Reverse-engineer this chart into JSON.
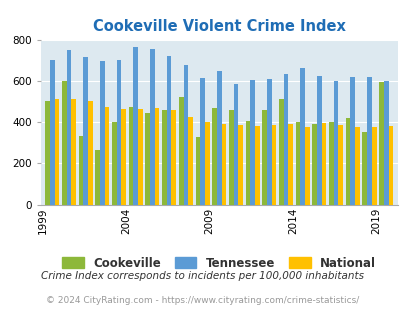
{
  "title": "Cookeville Violent Crime Index",
  "years": [
    1999,
    2000,
    2001,
    2002,
    2003,
    2004,
    2005,
    2006,
    2007,
    2008,
    2009,
    2010,
    2011,
    2012,
    2013,
    2014,
    2015,
    2016,
    2017,
    2018,
    2019
  ],
  "cookeville": [
    500,
    600,
    335,
    265,
    400,
    475,
    445,
    460,
    520,
    330,
    470,
    460,
    405,
    460,
    510,
    400,
    390,
    400,
    420,
    350,
    595
  ],
  "tennessee": [
    700,
    750,
    715,
    695,
    700,
    765,
    755,
    720,
    675,
    615,
    650,
    585,
    605,
    610,
    635,
    660,
    625,
    600,
    620,
    620,
    600
  ],
  "national": [
    510,
    510,
    500,
    475,
    465,
    465,
    470,
    460,
    425,
    400,
    390,
    385,
    380,
    385,
    390,
    375,
    395,
    385,
    375,
    375,
    380
  ],
  "colors": {
    "cookeville": "#8DB83A",
    "tennessee": "#5B9BD5",
    "national": "#FFC000"
  },
  "background_color": "#DDE9F0",
  "ylim": [
    0,
    800
  ],
  "yticks": [
    0,
    200,
    400,
    600,
    800
  ],
  "xtick_years": [
    1999,
    2004,
    2009,
    2014,
    2019
  ],
  "footnote1": "Crime Index corresponds to incidents per 100,000 inhabitants",
  "footnote2": "© 2024 CityRating.com - https://www.cityrating.com/crime-statistics/",
  "title_color": "#1F6DB5",
  "footnote1_color": "#333333",
  "footnote2_color": "#999999",
  "legend_labels": [
    "Cookeville",
    "Tennessee",
    "National"
  ]
}
